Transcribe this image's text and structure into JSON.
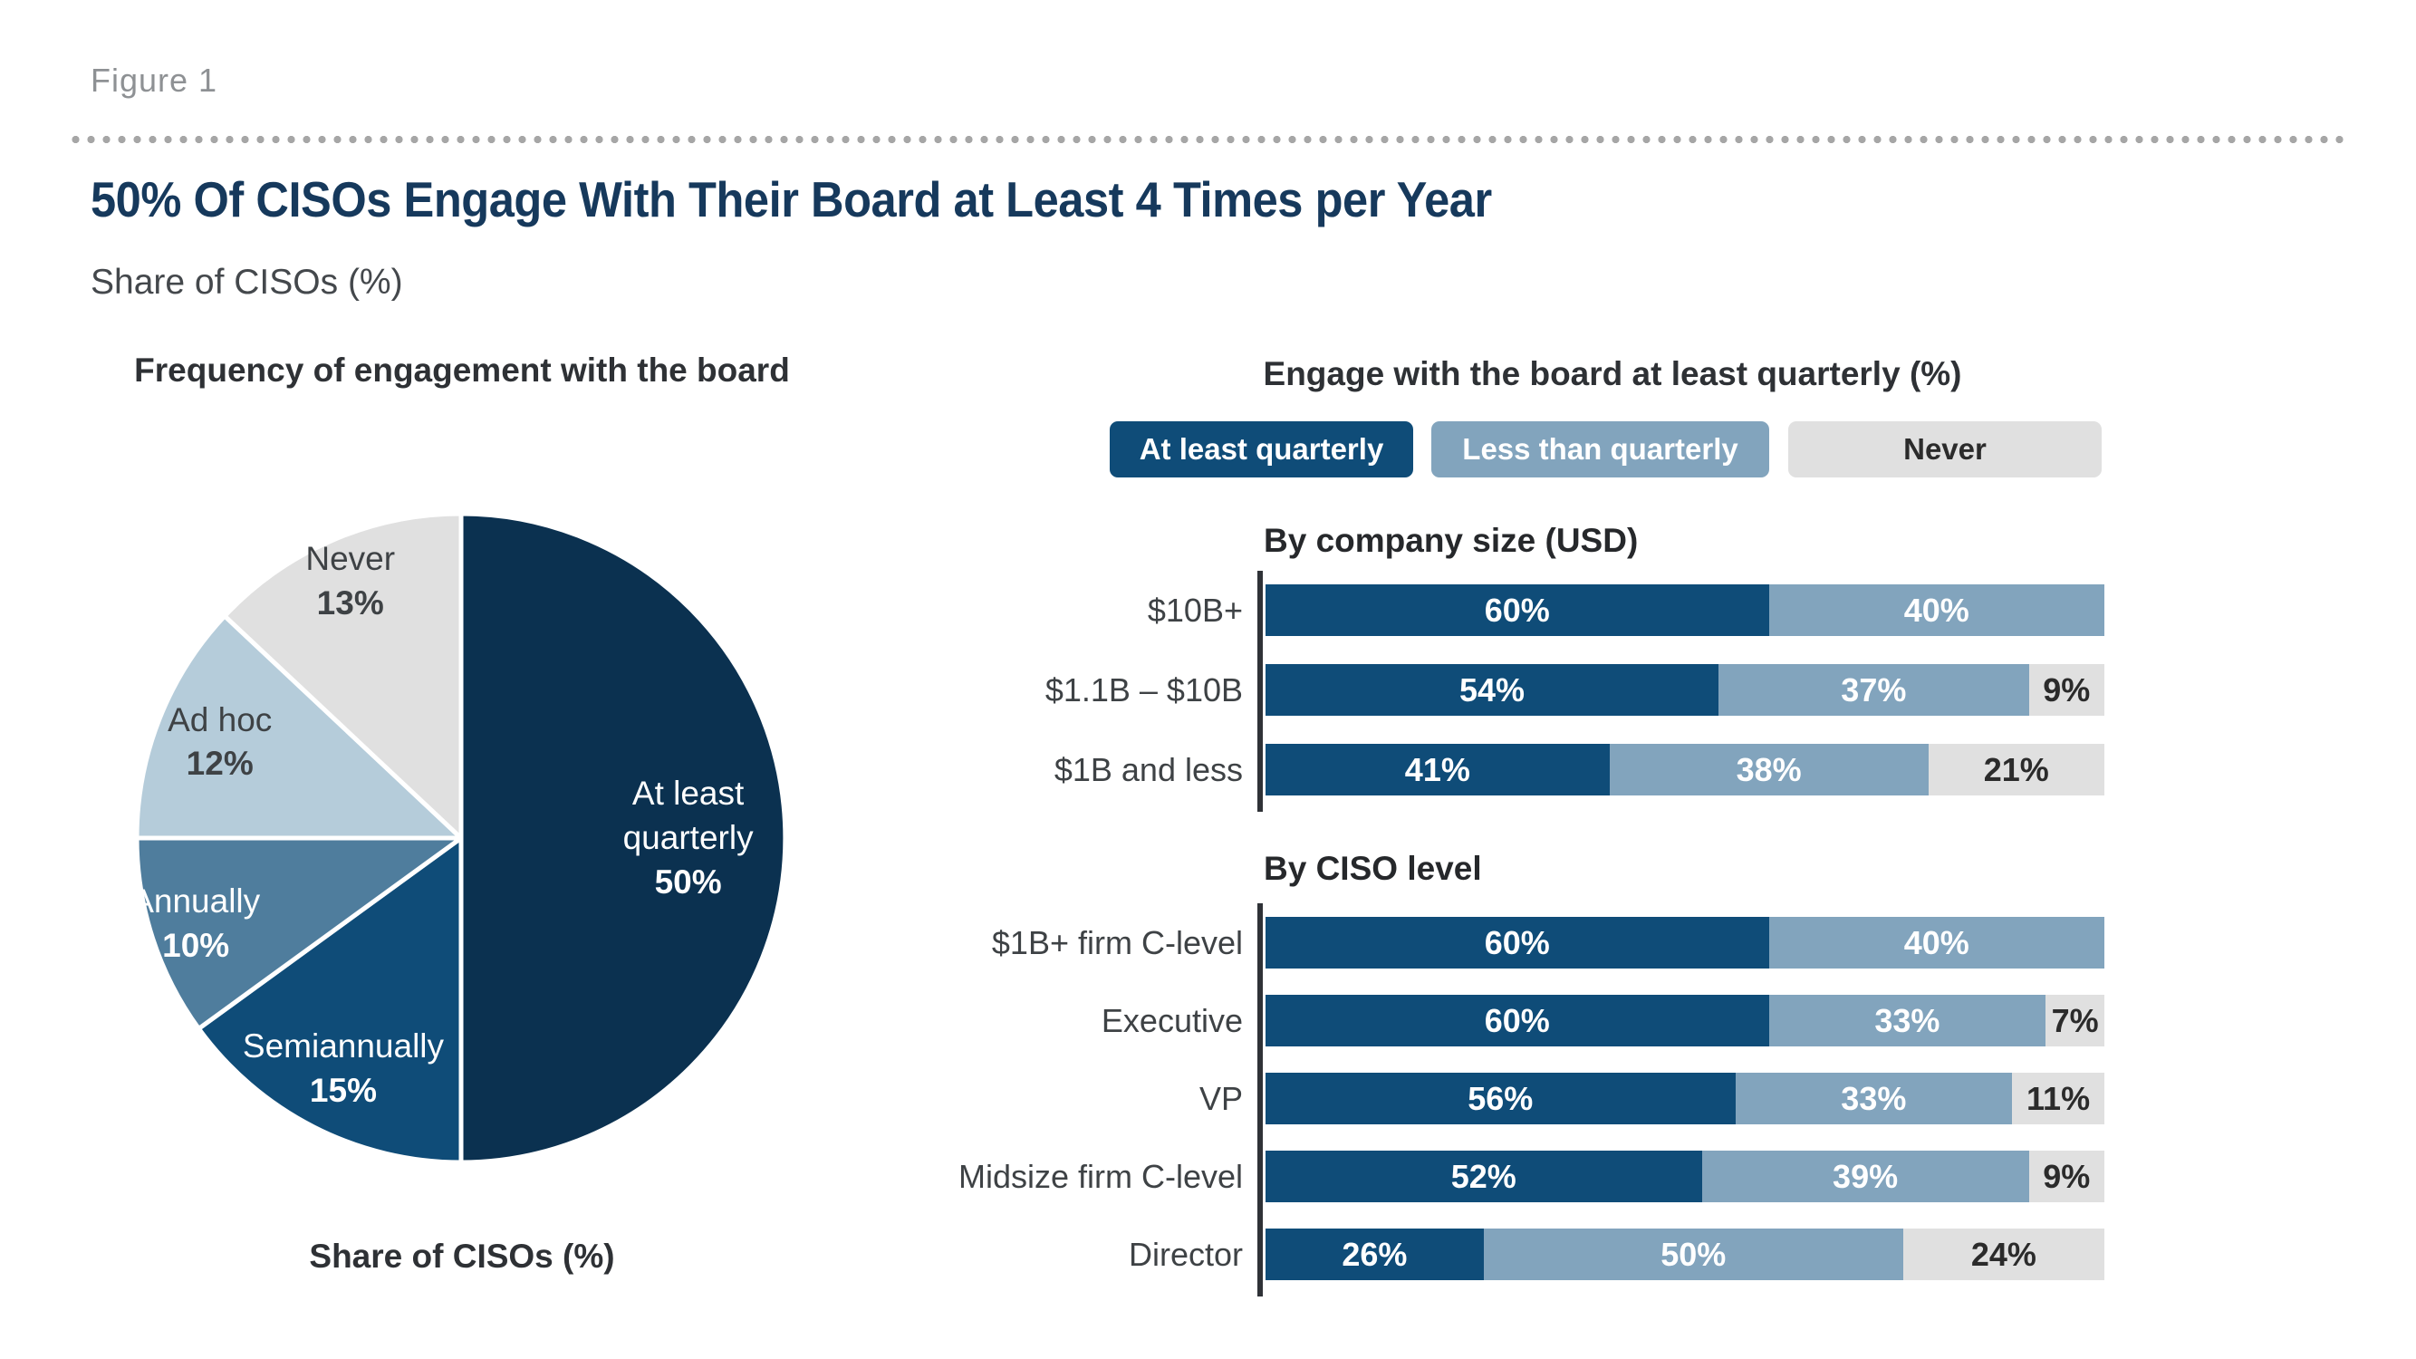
{
  "header": {
    "figure_label": "Figure 1",
    "title": "50% Of CISOs Engage With Their Board at Least 4 Times per Year",
    "subtitle": "Share of CISOs (%)"
  },
  "colors": {
    "title_navy": "#16395c",
    "pie_darkest_navy": "#0b3150",
    "navy": "#0f4c78",
    "steel_dark": "#4f7d9d",
    "steel": "#82a4bd",
    "light_blue": "#b5ccda",
    "light_gray": "#e0e0e0",
    "axis_dark": "#2f3237",
    "label_gray": "#3e4245"
  },
  "chart_data": [
    {
      "type": "pie",
      "title": "Frequency of engagement with the board",
      "caption": "Share of CISOs (%)",
      "unit": "%",
      "start_angle_deg": 0,
      "direction": "clockwise",
      "slices": [
        {
          "label": "At least quarterly",
          "value": 50,
          "color": "#0b3150",
          "text": "light"
        },
        {
          "label": "Semiannually",
          "value": 15,
          "color": "#0f4c78",
          "text": "light"
        },
        {
          "label": "Annually",
          "value": 10,
          "color": "#4f7d9d",
          "text": "light"
        },
        {
          "label": "Ad hoc",
          "value": 12,
          "color": "#b5ccda",
          "text": "dark"
        },
        {
          "label": "Never",
          "value": 13,
          "color": "#e0e0e0",
          "text": "dark"
        }
      ]
    },
    {
      "type": "bar",
      "variant": "stacked-horizontal",
      "title": "Engage with the board at least quarterly (%)",
      "xlim": [
        0,
        100
      ],
      "value_suffix": "%",
      "legend_position": "top",
      "series": [
        {
          "name": "At least quarterly",
          "color": "#0f4c78",
          "label_color": "#ffffff"
        },
        {
          "name": "Less than quarterly",
          "color": "#82a4bd",
          "label_color": "#ffffff"
        },
        {
          "name": "Never",
          "color": "#e0e0e0",
          "label_color": "#2b2b2b"
        }
      ],
      "groups": [
        {
          "name": "By company size (USD)",
          "rows": [
            {
              "label": "$10B+",
              "values": [
                60,
                40,
                0
              ]
            },
            {
              "label": "$1.1B – $10B",
              "values": [
                54,
                37,
                9
              ]
            },
            {
              "label": "$1B and less",
              "values": [
                41,
                38,
                21
              ]
            }
          ]
        },
        {
          "name": "By CISO level",
          "rows": [
            {
              "label": "$1B+ firm C-level",
              "values": [
                60,
                40,
                0
              ]
            },
            {
              "label": "Executive",
              "values": [
                60,
                33,
                7
              ]
            },
            {
              "label": "VP",
              "values": [
                56,
                33,
                11
              ]
            },
            {
              "label": "Midsize firm C-level",
              "values": [
                52,
                39,
                9
              ]
            },
            {
              "label": "Director",
              "values": [
                26,
                50,
                24
              ]
            }
          ]
        }
      ]
    }
  ]
}
